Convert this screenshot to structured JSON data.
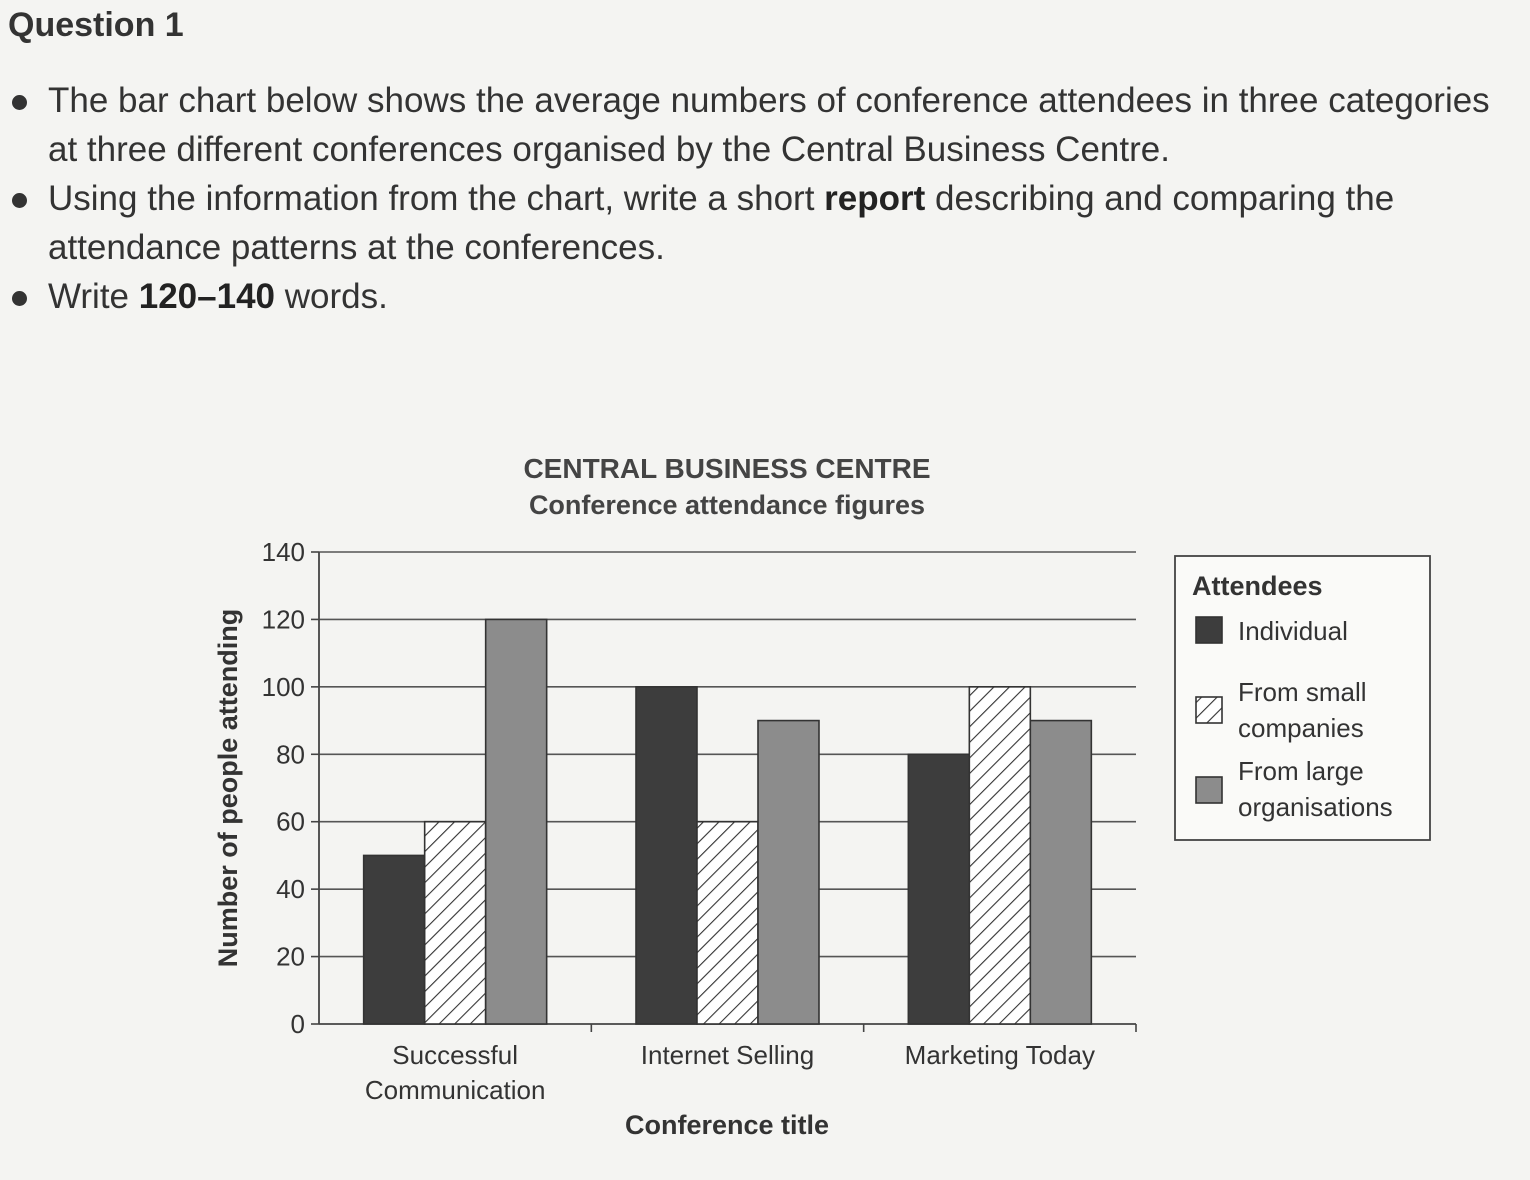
{
  "question": {
    "heading": "Question 1",
    "bullets": [
      {
        "segments": [
          {
            "text": "The bar chart below shows the average numbers of conference attendees in three categories at three different conferences organised by the Central Business Centre.",
            "bold": false
          }
        ]
      },
      {
        "segments": [
          {
            "text": "Using the information from the chart, write a short ",
            "bold": false
          },
          {
            "text": "report",
            "bold": true
          },
          {
            "text": " describing and comparing the attendance patterns at the conferences.",
            "bold": false
          }
        ]
      },
      {
        "segments": [
          {
            "text": "Write ",
            "bold": false
          },
          {
            "text": "120–140",
            "bold": true
          },
          {
            "text": " words.",
            "bold": false
          }
        ]
      }
    ]
  },
  "chart_data": {
    "type": "bar",
    "title": "CENTRAL BUSINESS CENTRE",
    "subtitle": "Conference attendance figures",
    "xlabel": "Conference title",
    "ylabel": "Number of people attending",
    "ylim": [
      0,
      140
    ],
    "yticks": [
      0,
      20,
      40,
      60,
      80,
      100,
      120,
      140
    ],
    "grid": true,
    "legend_title": "Attendees",
    "legend_position": "right",
    "categories": [
      [
        "Successful",
        "Communication"
      ],
      [
        "Internet Selling"
      ],
      [
        "Marketing Today"
      ]
    ],
    "series": [
      {
        "name": "Individual",
        "legend_lines": [
          "Individual"
        ],
        "fill": "solid-dark",
        "color": "#3d3d3d",
        "values": [
          50,
          100,
          80
        ]
      },
      {
        "name": "From small companies",
        "legend_lines": [
          "From small",
          "companies"
        ],
        "fill": "hatched",
        "color": "#ffffff",
        "values": [
          60,
          60,
          100
        ]
      },
      {
        "name": "From large organisations",
        "legend_lines": [
          "From large",
          "organisations"
        ],
        "fill": "solid-mid",
        "color": "#8c8c8c",
        "values": [
          120,
          90,
          90
        ]
      }
    ]
  }
}
